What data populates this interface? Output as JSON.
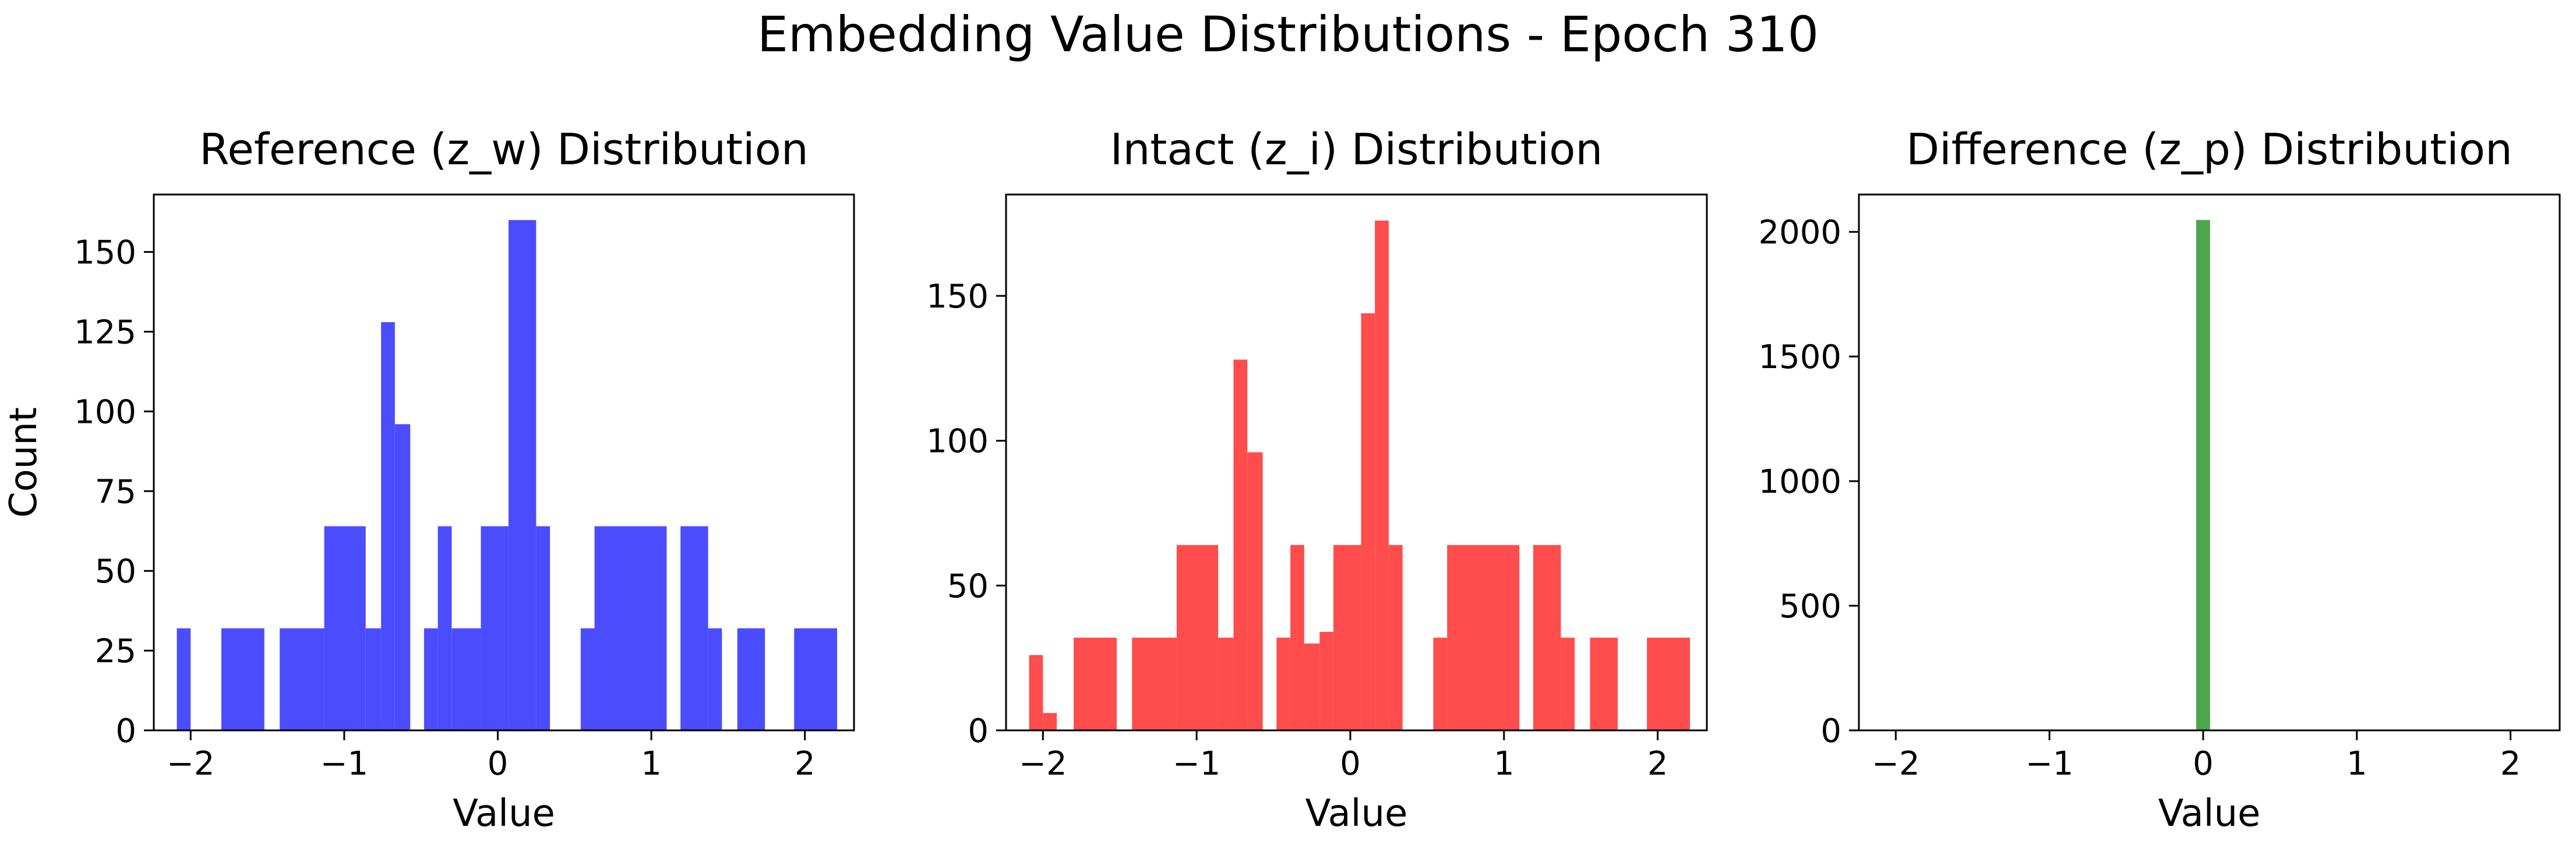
{
  "figure": {
    "title": "Embedding Value Distributions - Epoch 310"
  },
  "chart_data": [
    {
      "type": "bar",
      "title": "Reference (z_w) Distribution",
      "xlabel": "Value",
      "ylabel": "Count",
      "color": "#4c4cff",
      "xlim": [
        -2.24,
        2.32
      ],
      "ylim": [
        0,
        168
      ],
      "xticks": [
        -2,
        -1,
        0,
        1,
        2
      ],
      "yticks": [
        0,
        25,
        50,
        75,
        100,
        125,
        150
      ],
      "bins": [
        {
          "x0": -2.09,
          "x1": -2.0,
          "value": 32
        },
        {
          "x0": -1.8,
          "x1": -1.52,
          "value": 32
        },
        {
          "x0": -1.42,
          "x1": -1.13,
          "value": 32
        },
        {
          "x0": -1.13,
          "x1": -0.86,
          "value": 64
        },
        {
          "x0": -0.86,
          "x1": -0.76,
          "value": 32
        },
        {
          "x0": -0.76,
          "x1": -0.67,
          "value": 128
        },
        {
          "x0": -0.67,
          "x1": -0.57,
          "value": 96
        },
        {
          "x0": -0.48,
          "x1": -0.39,
          "value": 32
        },
        {
          "x0": -0.39,
          "x1": -0.3,
          "value": 64
        },
        {
          "x0": -0.3,
          "x1": -0.11,
          "value": 32
        },
        {
          "x0": -0.11,
          "x1": 0.07,
          "value": 64
        },
        {
          "x0": 0.07,
          "x1": 0.25,
          "value": 160
        },
        {
          "x0": 0.25,
          "x1": 0.34,
          "value": 64
        },
        {
          "x0": 0.54,
          "x1": 0.63,
          "value": 32
        },
        {
          "x0": 0.63,
          "x1": 1.1,
          "value": 64
        },
        {
          "x0": 1.19,
          "x1": 1.37,
          "value": 64
        },
        {
          "x0": 1.37,
          "x1": 1.46,
          "value": 32
        },
        {
          "x0": 1.56,
          "x1": 1.74,
          "value": 32
        },
        {
          "x0": 1.93,
          "x1": 2.21,
          "value": 32
        }
      ]
    },
    {
      "type": "bar",
      "title": "Intact (z_i) Distribution",
      "xlabel": "Value",
      "ylabel": "",
      "color": "#ff4c4c",
      "xlim": [
        -2.24,
        2.32
      ],
      "ylim": [
        0,
        185
      ],
      "xticks": [
        -2,
        -1,
        0,
        1,
        2
      ],
      "yticks": [
        0,
        50,
        100,
        150
      ],
      "bins": [
        {
          "x0": -2.09,
          "x1": -2.0,
          "value": 26
        },
        {
          "x0": -2.0,
          "x1": -1.91,
          "value": 6
        },
        {
          "x0": -1.8,
          "x1": -1.52,
          "value": 32
        },
        {
          "x0": -1.42,
          "x1": -1.13,
          "value": 32
        },
        {
          "x0": -1.13,
          "x1": -0.86,
          "value": 64
        },
        {
          "x0": -0.86,
          "x1": -0.76,
          "value": 32
        },
        {
          "x0": -0.76,
          "x1": -0.67,
          "value": 128
        },
        {
          "x0": -0.67,
          "x1": -0.57,
          "value": 96
        },
        {
          "x0": -0.48,
          "x1": -0.39,
          "value": 32
        },
        {
          "x0": -0.39,
          "x1": -0.3,
          "value": 64
        },
        {
          "x0": -0.3,
          "x1": -0.2,
          "value": 30
        },
        {
          "x0": -0.2,
          "x1": -0.11,
          "value": 34
        },
        {
          "x0": -0.11,
          "x1": 0.07,
          "value": 64
        },
        {
          "x0": 0.07,
          "x1": 0.16,
          "value": 144
        },
        {
          "x0": 0.16,
          "x1": 0.25,
          "value": 176
        },
        {
          "x0": 0.25,
          "x1": 0.34,
          "value": 64
        },
        {
          "x0": 0.54,
          "x1": 0.63,
          "value": 32
        },
        {
          "x0": 0.63,
          "x1": 1.1,
          "value": 64
        },
        {
          "x0": 1.19,
          "x1": 1.37,
          "value": 64
        },
        {
          "x0": 1.37,
          "x1": 1.46,
          "value": 32
        },
        {
          "x0": 1.56,
          "x1": 1.74,
          "value": 32
        },
        {
          "x0": 1.93,
          "x1": 2.21,
          "value": 32
        }
      ]
    },
    {
      "type": "bar",
      "title": "Difference (z_p) Distribution",
      "xlabel": "Value",
      "ylabel": "",
      "color": "#4ca64c",
      "xlim": [
        -2.24,
        2.32
      ],
      "ylim": [
        0,
        2150
      ],
      "xticks": [
        -2,
        -1,
        0,
        1,
        2
      ],
      "yticks": [
        0,
        500,
        1000,
        1500,
        2000
      ],
      "bins": [
        {
          "x0": -0.045,
          "x1": 0.045,
          "value": 2048
        }
      ]
    }
  ]
}
